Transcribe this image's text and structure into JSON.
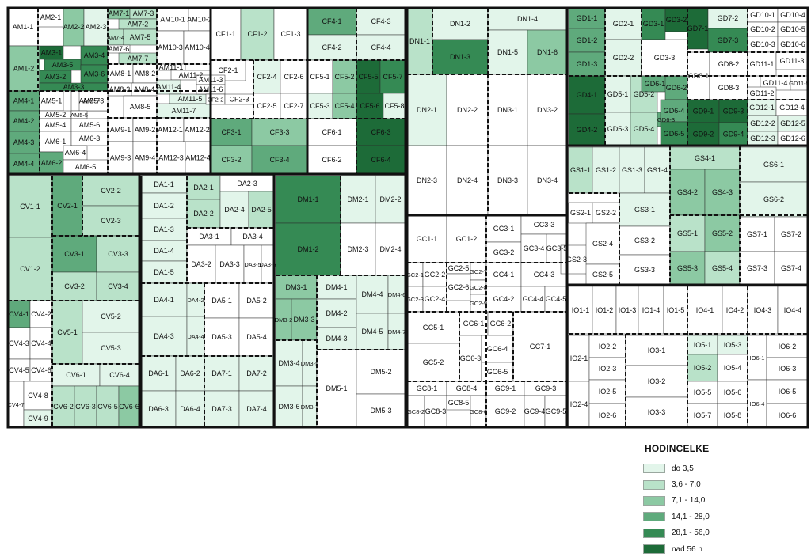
{
  "colors": {
    "c0": "#ffffff",
    "c1": "#e2f5ea",
    "c2": "#b9e2c9",
    "c3": "#8cc9a3",
    "c4": "#5faa7c",
    "c5": "#358a54",
    "c6": "#1d6b38"
  },
  "legend": {
    "title": "HODINCELKE",
    "items": [
      {
        "label": "do 3,5",
        "color": "#e2f5ea"
      },
      {
        "label": "3,6 - 7,0",
        "color": "#b9e2c9"
      },
      {
        "label": "7,1 - 14,0",
        "color": "#8cc9a3"
      },
      {
        "label": "14,1 - 28,0",
        "color": "#5faa7c"
      },
      {
        "label": "28,1 - 56,0",
        "color": "#358a54"
      },
      {
        "label": "nad 56 h",
        "color": "#1d6b38"
      }
    ]
  },
  "cells": [
    [
      "AM1-1",
      "c0"
    ],
    [
      "AM2-1",
      "c0"
    ],
    [
      "AM2-2",
      "c3"
    ],
    [
      "AM2-3",
      "c1"
    ],
    [
      "AM7-1",
      "c3"
    ],
    [
      "AM7-3",
      "c2"
    ],
    [
      "AM7-2",
      "c2"
    ],
    [
      "AM7-4",
      "c2"
    ],
    [
      "AM7-5",
      "c2"
    ],
    [
      "AM7-6",
      "c0"
    ],
    [
      "AM7-7",
      "c2"
    ],
    [
      "AM10-1",
      "c0"
    ],
    [
      "AM10-2",
      "c0"
    ],
    [
      "AM10-3",
      "c0"
    ],
    [
      "AM10-4",
      "c0"
    ],
    [
      "AM1-2",
      "c3"
    ],
    [
      "AM3-1",
      "c6"
    ],
    [
      "AM3-4",
      "c5"
    ],
    [
      "AM3-5",
      "c5"
    ],
    [
      "AM3-2",
      "c5"
    ],
    [
      "AM3-6",
      "c5"
    ],
    [
      "AM3-3",
      "c5"
    ],
    [
      "AM8-1",
      "c0"
    ],
    [
      "AM8-2",
      "c0"
    ],
    [
      "AM8-3",
      "c0"
    ],
    [
      "AM8-4",
      "c0"
    ],
    [
      "AM8-5",
      "c0"
    ],
    [
      "AM11-1",
      "c0"
    ],
    [
      "AM11-2",
      "c0"
    ],
    [
      "AM11-4",
      "c1"
    ],
    [
      "AM11-5",
      "c1"
    ],
    [
      "AM11-7",
      "c1"
    ],
    [
      "AM4-1",
      "c4"
    ],
    [
      "AM4-2",
      "c4"
    ],
    [
      "AM4-3",
      "c4"
    ],
    [
      "AM4-4",
      "c4"
    ],
    [
      "AM5-1",
      "c0"
    ],
    [
      "AM5-2",
      "c0"
    ],
    [
      "AM5-7",
      "c0"
    ],
    [
      "AM5-3",
      "c0"
    ],
    [
      "AM5-5",
      "c0"
    ],
    [
      "AM5-4",
      "c0"
    ],
    [
      "AM5-6",
      "c0"
    ],
    [
      "AM6-1",
      "c0"
    ],
    [
      "AM6-2",
      "c4"
    ],
    [
      "AM6-3",
      "c0"
    ],
    [
      "AM6-4",
      "c0"
    ],
    [
      "AM6-5",
      "c0"
    ],
    [
      "AM9-1",
      "c0"
    ],
    [
      "AM9-2",
      "c0"
    ],
    [
      "AM9-3",
      "c0"
    ],
    [
      "AM9-4",
      "c0"
    ],
    [
      "AM12-1",
      "c0"
    ],
    [
      "AM12-2",
      "c0"
    ],
    [
      "AM12-3",
      "c0"
    ],
    [
      "AM12-4",
      "c0"
    ],
    [
      "CF1-1",
      "c0"
    ],
    [
      "CF1-2",
      "c2"
    ],
    [
      "CF1-3",
      "c0"
    ],
    [
      "CF2-1",
      "c0"
    ],
    [
      "AM11-3",
      "c0"
    ],
    [
      "AM11-6",
      "c0"
    ],
    [
      "CF2-2",
      "c0"
    ],
    [
      "CF2-3",
      "c0"
    ],
    [
      "CF2-4",
      "c1"
    ],
    [
      "CF2-5",
      "c0"
    ],
    [
      "CF2-6",
      "c0"
    ],
    [
      "CF2-7",
      "c0"
    ],
    [
      "CF3-1",
      "c4"
    ],
    [
      "CF3-3",
      "c3"
    ],
    [
      "CF3-2",
      "c3"
    ],
    [
      "CF3-4",
      "c4"
    ],
    [
      "CF4-1",
      "c4"
    ],
    [
      "CF4-3",
      "c1"
    ],
    [
      "CF4-2",
      "c1"
    ],
    [
      "CF4-4",
      "c1"
    ],
    [
      "CF5-1",
      "c0"
    ],
    [
      "CF5-2",
      "c3"
    ],
    [
      "CF5-5",
      "c6"
    ],
    [
      "CF5-7",
      "c5"
    ],
    [
      "CF5-3",
      "c1"
    ],
    [
      "CF5-4",
      "c3"
    ],
    [
      "CF5-6",
      "c6"
    ],
    [
      "CF5-8",
      "c1"
    ],
    [
      "CF6-1",
      "c0"
    ],
    [
      "CF6-3",
      "c6"
    ],
    [
      "CF6-2",
      "c0"
    ],
    [
      "CF6-4",
      "c6"
    ],
    [
      "DN1-1",
      "c2"
    ],
    [
      "DN1-2",
      "c1"
    ],
    [
      "DN1-3",
      "c5"
    ],
    [
      "DN1-4",
      "c1"
    ],
    [
      "DN1-5",
      "c1"
    ],
    [
      "DN1-6",
      "c3"
    ],
    [
      "DN2-1",
      "c1"
    ],
    [
      "DN2-2",
      "c0"
    ],
    [
      "DN2-3",
      "c0"
    ],
    [
      "DN2-4",
      "c0"
    ],
    [
      "DN3-1",
      "c0"
    ],
    [
      "DN3-2",
      "c0"
    ],
    [
      "DN3-3",
      "c0"
    ],
    [
      "DN3-4",
      "c0"
    ],
    [
      "GD1-1",
      "c4"
    ],
    [
      "GD1-2",
      "c4"
    ],
    [
      "GD1-3",
      "c4"
    ],
    [
      "GD2-1",
      "c1"
    ],
    [
      "GD2-2",
      "c1"
    ],
    [
      "GD3-1",
      "c5"
    ],
    [
      "GD3-2",
      "c6"
    ],
    [
      "GD3-3",
      "c0"
    ],
    [
      "GD7-1",
      "c6"
    ],
    [
      "GD7-2",
      "c1"
    ],
    [
      "GD7-3",
      "c5"
    ],
    [
      "GD10-1",
      "c0"
    ],
    [
      "GD10-4",
      "c0"
    ],
    [
      "GD10-2",
      "c0"
    ],
    [
      "GD10-5",
      "c0"
    ],
    [
      "GD10-3",
      "c0"
    ],
    [
      "GD10-6",
      "c0"
    ],
    [
      "GD8-1",
      "c0"
    ],
    [
      "GD8-2",
      "c0"
    ],
    [
      "GD8-3",
      "c0"
    ],
    [
      "GD11-1",
      "c0"
    ],
    [
      "GD11-3",
      "c0"
    ],
    [
      "GD11-4",
      "c0"
    ],
    [
      "GD11-5",
      "c0"
    ],
    [
      "GD11-2",
      "c0"
    ],
    [
      "GD4-1",
      "c6"
    ],
    [
      "GD4-2",
      "c6"
    ],
    [
      "GD5-1",
      "c1"
    ],
    [
      "GD5-2",
      "c2"
    ],
    [
      "GD5-3",
      "c1"
    ],
    [
      "GD5-4",
      "c2"
    ],
    [
      "GD6-1",
      "c4"
    ],
    [
      "GD6-2",
      "c4"
    ],
    [
      "GD6-3",
      "c4"
    ],
    [
      "GD6-4",
      "c4"
    ],
    [
      "GD6-5",
      "c5"
    ],
    [
      "GD9-1",
      "c6"
    ],
    [
      "GD9-3",
      "c6"
    ],
    [
      "GD9-2",
      "c6"
    ],
    [
      "GD9-4",
      "c5"
    ],
    [
      "GD12-1",
      "c1"
    ],
    [
      "GD12-4",
      "c0"
    ],
    [
      "GD12-2",
      "c1"
    ],
    [
      "GD12-5",
      "c1"
    ],
    [
      "GD12-3",
      "c1"
    ],
    [
      "GD12-6",
      "c0"
    ],
    [
      "CV1-1",
      "c2"
    ],
    [
      "CV1-2",
      "c2"
    ],
    [
      "CV2-1",
      "c4"
    ],
    [
      "CV2-2",
      "c2"
    ],
    [
      "CV2-3",
      "c2"
    ],
    [
      "CV3-1",
      "c4"
    ],
    [
      "CV3-3",
      "c2"
    ],
    [
      "CV3-2",
      "c2"
    ],
    [
      "CV3-4",
      "c2"
    ],
    [
      "CV4-1",
      "c4"
    ],
    [
      "CV4-2",
      "c0"
    ],
    [
      "CV4-3",
      "c0"
    ],
    [
      "CV4-4",
      "c0"
    ],
    [
      "CV4-5",
      "c0"
    ],
    [
      "CV4-6",
      "c0"
    ],
    [
      "CV4-7",
      "c0"
    ],
    [
      "CV4-8",
      "c0"
    ],
    [
      "CV4-9",
      "c1"
    ],
    [
      "CV5-1",
      "c2"
    ],
    [
      "CV5-2",
      "c1"
    ],
    [
      "CV5-3",
      "c1"
    ],
    [
      "CV6-1",
      "c1"
    ],
    [
      "CV6-4",
      "c1"
    ],
    [
      "CV6-2",
      "c2"
    ],
    [
      "CV6-3",
      "c2"
    ],
    [
      "CV6-5",
      "c2"
    ],
    [
      "CV6-6",
      "c3"
    ],
    [
      "DA1-1",
      "c1"
    ],
    [
      "DA1-2",
      "c1"
    ],
    [
      "DA1-3",
      "c1"
    ],
    [
      "DA1-4",
      "c1"
    ],
    [
      "DA1-5",
      "c1"
    ],
    [
      "DA2-1",
      "c2"
    ],
    [
      "DA2-2",
      "c2"
    ],
    [
      "DA2-3",
      "c0"
    ],
    [
      "DA2-4",
      "c1"
    ],
    [
      "DA2-5",
      "c2"
    ],
    [
      "DA3-1",
      "c0"
    ],
    [
      "DA3-4",
      "c0"
    ],
    [
      "DA3-2",
      "c0"
    ],
    [
      "DA3-3",
      "c0"
    ],
    [
      "DA3-5",
      "c0"
    ],
    [
      "DA3-6",
      "c0"
    ],
    [
      "DA4-1",
      "c1"
    ],
    [
      "DA4-2",
      "c1"
    ],
    [
      "DA4-3",
      "c1"
    ],
    [
      "DA4-4",
      "c1"
    ],
    [
      "DA5-1",
      "c0"
    ],
    [
      "DA5-2",
      "c0"
    ],
    [
      "DA5-3",
      "c0"
    ],
    [
      "DA5-4",
      "c0"
    ],
    [
      "DA6-1",
      "c1"
    ],
    [
      "DA6-2",
      "c1"
    ],
    [
      "DA6-3",
      "c1"
    ],
    [
      "DA6-4",
      "c1"
    ],
    [
      "DA7-1",
      "c1"
    ],
    [
      "DA7-2",
      "c1"
    ],
    [
      "DA7-3",
      "c1"
    ],
    [
      "DA7-4",
      "c1"
    ],
    [
      "DM1-1",
      "c5"
    ],
    [
      "DM1-2",
      "c5"
    ],
    [
      "DM2-1",
      "c1"
    ],
    [
      "DM2-2",
      "c1"
    ],
    [
      "DM2-3",
      "c0"
    ],
    [
      "DM2-4",
      "c0"
    ],
    [
      "DM3-1",
      "c3"
    ],
    [
      "DM3-2",
      "c3"
    ],
    [
      "DM3-3",
      "c3"
    ],
    [
      "DM3-4",
      "c1"
    ],
    [
      "DM3-5",
      "c1"
    ],
    [
      "DM3-6",
      "c1"
    ],
    [
      "DM3-7",
      "c1"
    ],
    [
      "DM4-1",
      "c1"
    ],
    [
      "DM4-2",
      "c1"
    ],
    [
      "DM4-3",
      "c1"
    ],
    [
      "DM4-4",
      "c1"
    ],
    [
      "DM4-5",
      "c1"
    ],
    [
      "DM4-6",
      "c1"
    ],
    [
      "DM4-7",
      "c1"
    ],
    [
      "DM5-1",
      "c0"
    ],
    [
      "DM5-2",
      "c0"
    ],
    [
      "DM5-3",
      "c0"
    ],
    [
      "GC1-1",
      "c0"
    ],
    [
      "GC1-2",
      "c0"
    ],
    [
      "GC3-1",
      "c0"
    ],
    [
      "GC3-2",
      "c0"
    ],
    [
      "GC3-3",
      "c0"
    ],
    [
      "GC3-4",
      "c0"
    ],
    [
      "GC3-5",
      "c0"
    ],
    [
      "GC2-1",
      "c0"
    ],
    [
      "GC2-2",
      "c0"
    ],
    [
      "GC2-3",
      "c0"
    ],
    [
      "GC2-4",
      "c0"
    ],
    [
      "GC2-5",
      "c0"
    ],
    [
      "GC2-6",
      "c0"
    ],
    [
      "GC2-7",
      "c0"
    ],
    [
      "GC2-8",
      "c0"
    ],
    [
      "GC2-9",
      "c0"
    ],
    [
      "GC4-1",
      "c0"
    ],
    [
      "GC4-2",
      "c0"
    ],
    [
      "GC4-3",
      "c0"
    ],
    [
      "GC4-4",
      "c0"
    ],
    [
      "GC4-5",
      "c0"
    ],
    [
      "GC5-1",
      "c0"
    ],
    [
      "GC5-2",
      "c0"
    ],
    [
      "GC6-1",
      "c0"
    ],
    [
      "GC6-2",
      "c0"
    ],
    [
      "GC6-3",
      "c0"
    ],
    [
      "GC6-4",
      "c0"
    ],
    [
      "GC6-5",
      "c0"
    ],
    [
      "GC7-1",
      "c0"
    ],
    [
      "GC8-1",
      "c0"
    ],
    [
      "GC8-2",
      "c0"
    ],
    [
      "GC8-3",
      "c0"
    ],
    [
      "GC8-4",
      "c0"
    ],
    [
      "GC8-5",
      "c0"
    ],
    [
      "GC8-6",
      "c0"
    ],
    [
      "GC9-1",
      "c0"
    ],
    [
      "GC9-2",
      "c0"
    ],
    [
      "GC9-3",
      "c0"
    ],
    [
      "GC9-4",
      "c0"
    ],
    [
      "GC9-5",
      "c0"
    ],
    [
      "GS1-1",
      "c2"
    ],
    [
      "GS1-2",
      "c1"
    ],
    [
      "GS1-3",
      "c1"
    ],
    [
      "GS1-4",
      "c1"
    ],
    [
      "GS4-1",
      "c2"
    ],
    [
      "GS4-2",
      "c3"
    ],
    [
      "GS4-3",
      "c3"
    ],
    [
      "GS6-1",
      "c1"
    ],
    [
      "GS6-2",
      "c1"
    ],
    [
      "GS2-1",
      "c0"
    ],
    [
      "GS2-2",
      "c0"
    ],
    [
      "GS2-3",
      "c0"
    ],
    [
      "GS2-4",
      "c0"
    ],
    [
      "GS2-5",
      "c0"
    ],
    [
      "GS3-1",
      "c1"
    ],
    [
      "GS3-2",
      "c0"
    ],
    [
      "GS3-3",
      "c0"
    ],
    [
      "GS5-1",
      "c2"
    ],
    [
      "GS5-2",
      "c3"
    ],
    [
      "GS5-3",
      "c3"
    ],
    [
      "GS5-4",
      "c2"
    ],
    [
      "GS7-1",
      "c0"
    ],
    [
      "GS7-2",
      "c0"
    ],
    [
      "GS7-3",
      "c0"
    ],
    [
      "GS7-4",
      "c0"
    ],
    [
      "IO1-1",
      "c0"
    ],
    [
      "IO1-2",
      "c0"
    ],
    [
      "IO1-3",
      "c0"
    ],
    [
      "IO1-4",
      "c0"
    ],
    [
      "IO1-5",
      "c0"
    ],
    [
      "IO4-1",
      "c0"
    ],
    [
      "IO4-2",
      "c0"
    ],
    [
      "IO4-3",
      "c0"
    ],
    [
      "IO4-4",
      "c0"
    ],
    [
      "IO2-1",
      "c0"
    ],
    [
      "IO2-2",
      "c0"
    ],
    [
      "IO2-3",
      "c0"
    ],
    [
      "IO2-4",
      "c0"
    ],
    [
      "IO2-5",
      "c0"
    ],
    [
      "IO2-6",
      "c0"
    ],
    [
      "IO3-1",
      "c0"
    ],
    [
      "IO3-2",
      "c0"
    ],
    [
      "IO3-3",
      "c0"
    ],
    [
      "IO5-1",
      "c1"
    ],
    [
      "IO5-2",
      "c2"
    ],
    [
      "IO5-3",
      "c1"
    ],
    [
      "IO5-4",
      "c0"
    ],
    [
      "IO5-5",
      "c0"
    ],
    [
      "IO5-6",
      "c0"
    ],
    [
      "IO5-7",
      "c0"
    ],
    [
      "IO5-8",
      "c0"
    ],
    [
      "IO6-1",
      "c0"
    ],
    [
      "IO6-2",
      "c0"
    ],
    [
      "IO6-3",
      "c0"
    ],
    [
      "IO6-4",
      "c0"
    ],
    [
      "IO6-5",
      "c0"
    ],
    [
      "IO6-6",
      "c0"
    ]
  ]
}
